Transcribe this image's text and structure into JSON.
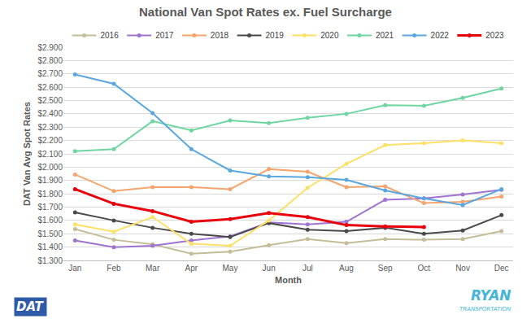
{
  "chart_data": {
    "type": "line",
    "title": "National Van Spot Rates ex. Fuel Surcharge",
    "x_label": "Month",
    "y_label": "DAT Van Avg Spot Rates",
    "categories": [
      "Jan",
      "Feb",
      "Mar",
      "Apr",
      "May",
      "Jun",
      "Jul",
      "Aug",
      "Sep",
      "Oct",
      "Nov",
      "Dec"
    ],
    "series": [
      {
        "name": "2016",
        "color": "#c4bd97",
        "values": [
          1.535,
          1.455,
          1.42,
          1.35,
          1.365,
          1.415,
          1.46,
          1.43,
          1.46,
          1.455,
          1.46,
          1.52
        ]
      },
      {
        "name": "2017",
        "color": "#9e74d0",
        "values": [
          1.45,
          1.4,
          1.41,
          1.45,
          1.48,
          1.585,
          1.57,
          1.59,
          1.755,
          1.765,
          1.795,
          1.83
        ]
      },
      {
        "name": "2018",
        "color": "#f4a46c",
        "values": [
          1.945,
          1.82,
          1.85,
          1.85,
          1.835,
          1.985,
          1.965,
          1.85,
          1.855,
          1.73,
          1.74,
          1.78
        ]
      },
      {
        "name": "2019",
        "color": "#4a4a4a",
        "values": [
          1.66,
          1.6,
          1.545,
          1.5,
          1.475,
          1.58,
          1.53,
          1.52,
          1.545,
          1.5,
          1.525,
          1.64
        ]
      },
      {
        "name": "2020",
        "color": "#ffe066",
        "values": [
          1.57,
          1.515,
          1.625,
          1.425,
          1.41,
          1.6,
          1.845,
          2.025,
          2.165,
          2.18,
          2.2,
          2.18
        ]
      },
      {
        "name": "2021",
        "color": "#6fd6a2",
        "values": [
          2.12,
          2.135,
          2.345,
          2.275,
          2.35,
          2.33,
          2.37,
          2.4,
          2.465,
          2.46,
          2.52,
          2.59
        ]
      },
      {
        "name": "2022",
        "color": "#5aa7e0",
        "values": [
          2.695,
          2.625,
          2.405,
          2.135,
          1.975,
          1.93,
          1.925,
          1.905,
          1.825,
          1.765,
          1.715,
          1.835
        ]
      },
      {
        "name": "2023",
        "color": "#e8000b",
        "values": [
          1.835,
          1.725,
          1.67,
          1.59,
          1.61,
          1.655,
          1.625,
          1.565,
          1.555,
          1.55,
          null,
          null
        ]
      }
    ],
    "ylim": [
      1.3,
      2.9
    ],
    "yticks": [
      {
        "value": 1.3,
        "label": "$1.300"
      },
      {
        "value": 1.4,
        "label": "$1.400"
      },
      {
        "value": 1.5,
        "label": "$1.500"
      },
      {
        "value": 1.6,
        "label": "$1.600"
      },
      {
        "value": 1.7,
        "label": "$1.700"
      },
      {
        "value": 1.8,
        "label": "$1.800"
      },
      {
        "value": 1.9,
        "label": "$1.900"
      },
      {
        "value": 2.0,
        "label": "$2.000"
      },
      {
        "value": 2.1,
        "label": "$2.100"
      },
      {
        "value": 2.2,
        "label": "$2.200"
      },
      {
        "value": 2.3,
        "label": "$2.300"
      },
      {
        "value": 2.4,
        "label": "$2.400"
      },
      {
        "value": 2.5,
        "label": "$2.500"
      },
      {
        "value": 2.6,
        "label": "$2.600"
      },
      {
        "value": 2.7,
        "label": "$2.700"
      },
      {
        "value": 2.8,
        "label": "$2.800"
      },
      {
        "value": 2.9,
        "label": "$2.900"
      }
    ],
    "grid": true,
    "legend": "top",
    "marker": "circle",
    "line_style": "solid",
    "annotations": [
      "DAT",
      "RYAN",
      "TRANSPORTATION"
    ]
  }
}
